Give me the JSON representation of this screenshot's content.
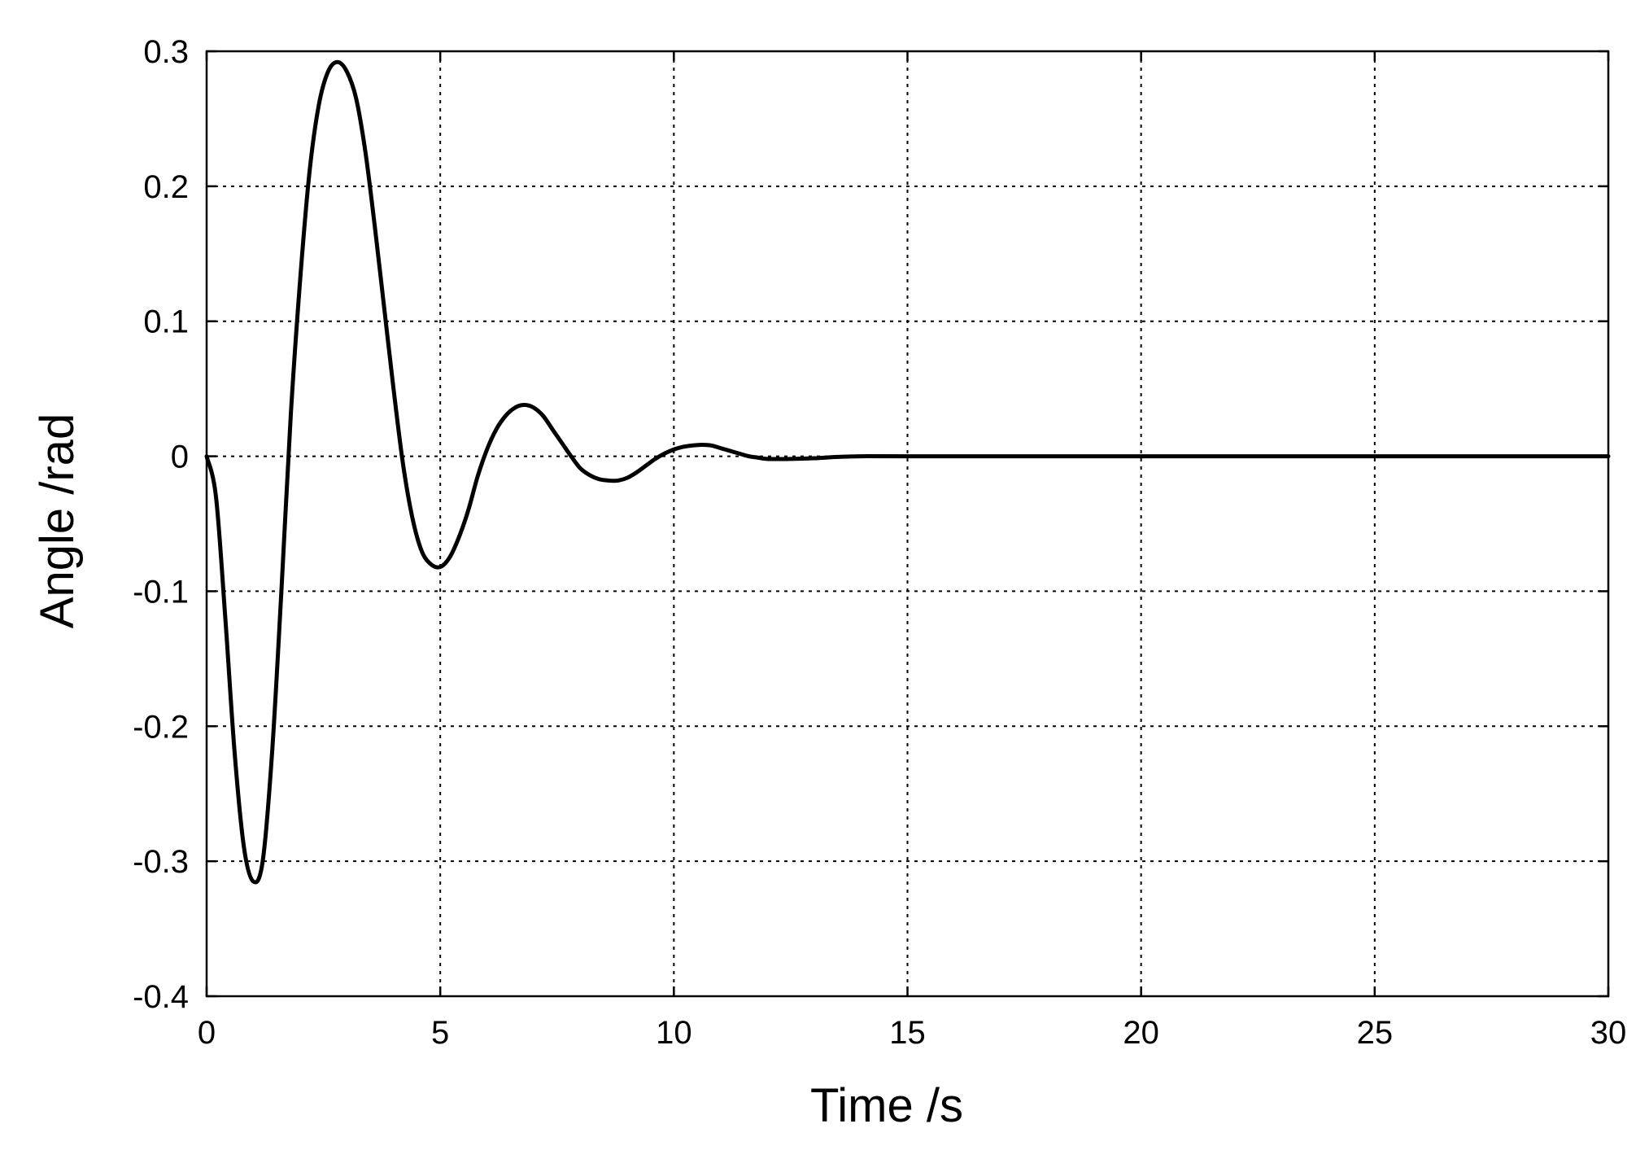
{
  "chart_data": {
    "type": "line",
    "title": "",
    "xlabel": "Time /s",
    "ylabel": "Angle /rad",
    "xlim": [
      0,
      30
    ],
    "ylim": [
      -0.4,
      0.3
    ],
    "xticks": [
      0,
      5,
      10,
      15,
      20,
      25,
      30
    ],
    "yticks": [
      -0.4,
      -0.3,
      -0.2,
      -0.1,
      0,
      0.1,
      0.2,
      0.3
    ],
    "xtick_labels": [
      "0",
      "5",
      "10",
      "15",
      "20",
      "25",
      "30"
    ],
    "ytick_labels": [
      "-0.4",
      "-0.3",
      "-0.2",
      "-0.1",
      "0",
      "0.1",
      "0.2",
      "0.3"
    ],
    "grid": true,
    "line_color": "#000000",
    "series": [
      {
        "x": [
          0,
          0.2,
          0.4,
          0.6,
          0.8,
          1.0,
          1.2,
          1.4,
          1.6,
          1.8,
          2.0,
          2.2,
          2.4,
          2.6,
          2.8,
          3.0,
          3.2,
          3.4,
          3.6,
          3.8,
          4.0,
          4.2,
          4.4,
          4.6,
          4.8,
          5.0,
          5.2,
          5.4,
          5.6,
          5.8,
          6.0,
          6.2,
          6.4,
          6.6,
          6.8,
          7.0,
          7.2,
          7.4,
          7.6,
          7.8,
          8.0,
          8.2,
          8.4,
          8.6,
          8.8,
          9.0,
          9.2,
          9.4,
          9.6,
          9.8,
          10.0,
          10.2,
          10.4,
          10.6,
          10.8,
          11.0,
          11.2,
          11.4,
          11.6,
          11.8,
          12.0,
          12.5,
          13.0,
          13.5,
          14.0,
          15.0,
          20.0,
          25.0,
          30.0
        ],
        "y": [
          0,
          -0.03,
          -0.12,
          -0.22,
          -0.29,
          -0.315,
          -0.3,
          -0.22,
          -0.1,
          0.03,
          0.13,
          0.21,
          0.26,
          0.285,
          0.292,
          0.285,
          0.265,
          0.225,
          0.17,
          0.11,
          0.05,
          -0.005,
          -0.045,
          -0.07,
          -0.08,
          -0.082,
          -0.075,
          -0.06,
          -0.04,
          -0.015,
          0.005,
          0.02,
          0.03,
          0.036,
          0.038,
          0.036,
          0.03,
          0.02,
          0.01,
          0,
          -0.009,
          -0.014,
          -0.017,
          -0.018,
          -0.018,
          -0.016,
          -0.012,
          -0.007,
          -0.002,
          0.002,
          0.005,
          0.007,
          0.008,
          0.0085,
          0.008,
          0.006,
          0.004,
          0.002,
          0,
          -0.001,
          -0.002,
          -0.002,
          -0.0015,
          -0.0005,
          0,
          0,
          0,
          0,
          0
        ]
      }
    ]
  }
}
